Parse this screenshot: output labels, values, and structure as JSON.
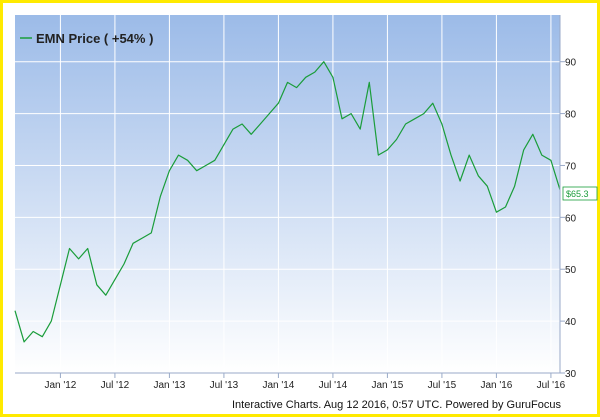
{
  "chart_data": {
    "type": "line",
    "title": "",
    "legend": {
      "label": "EMN Price ( +54% )",
      "placement": "top-left"
    },
    "series": [
      {
        "name": "EMN Price ( +54% )",
        "color": "#1a9d3a",
        "x": [
          "2011-08",
          "2011-09",
          "2011-10",
          "2011-11",
          "2011-12",
          "2012-01",
          "2012-02",
          "2012-03",
          "2012-04",
          "2012-05",
          "2012-06",
          "2012-07",
          "2012-08",
          "2012-09",
          "2012-10",
          "2012-11",
          "2012-12",
          "2013-01",
          "2013-02",
          "2013-03",
          "2013-04",
          "2013-05",
          "2013-06",
          "2013-07",
          "2013-08",
          "2013-09",
          "2013-10",
          "2013-11",
          "2013-12",
          "2014-01",
          "2014-02",
          "2014-03",
          "2014-04",
          "2014-05",
          "2014-06",
          "2014-07",
          "2014-08",
          "2014-09",
          "2014-10",
          "2014-11",
          "2014-12",
          "2015-01",
          "2015-02",
          "2015-03",
          "2015-04",
          "2015-05",
          "2015-06",
          "2015-07",
          "2015-08",
          "2015-09",
          "2015-10",
          "2015-11",
          "2015-12",
          "2016-01",
          "2016-02",
          "2016-03",
          "2016-04",
          "2016-05",
          "2016-06",
          "2016-07",
          "2016-08"
        ],
        "values": [
          42,
          36,
          38,
          37,
          40,
          47,
          54,
          52,
          54,
          47,
          45,
          48,
          51,
          55,
          56,
          57,
          64,
          69,
          72,
          71,
          69,
          70,
          71,
          74,
          77,
          78,
          76,
          78,
          80,
          82,
          86,
          85,
          87,
          88,
          90,
          87,
          79,
          80,
          77,
          86,
          72,
          73,
          75,
          78,
          79,
          80,
          82,
          78,
          72,
          67,
          72,
          68,
          66,
          61,
          62,
          66,
          73,
          76,
          72,
          71,
          65.3
        ]
      }
    ],
    "ylim": [
      30,
      99
    ],
    "yticks": [
      30,
      40,
      50,
      60,
      70,
      80,
      90
    ],
    "xlim": [
      "2011-08",
      "2016-08"
    ],
    "xticks": [
      {
        "x": "2012-01",
        "label": "Jan '12"
      },
      {
        "x": "2012-07",
        "label": "Jul '12"
      },
      {
        "x": "2013-01",
        "label": "Jan '13"
      },
      {
        "x": "2013-07",
        "label": "Jul '13"
      },
      {
        "x": "2014-01",
        "label": "Jan '14"
      },
      {
        "x": "2014-07",
        "label": "Jul '14"
      },
      {
        "x": "2015-01",
        "label": "Jan '15"
      },
      {
        "x": "2015-07",
        "label": "Jul '15"
      },
      {
        "x": "2016-01",
        "label": "Jan '16"
      },
      {
        "x": "2016-07",
        "label": "Jul '16"
      }
    ],
    "y_axis_side": "right",
    "grid": true,
    "last_price_label": "$65.3",
    "credit": "Interactive Charts. Aug 12 2016, 0:57 UTC. Powered by GuruFocus"
  },
  "colors": {
    "background_top": "#9cbbe8",
    "background_bottom": "#ffffff",
    "line": "#1a9d3a",
    "grid": "#ffffff",
    "border": "#ffea00"
  }
}
